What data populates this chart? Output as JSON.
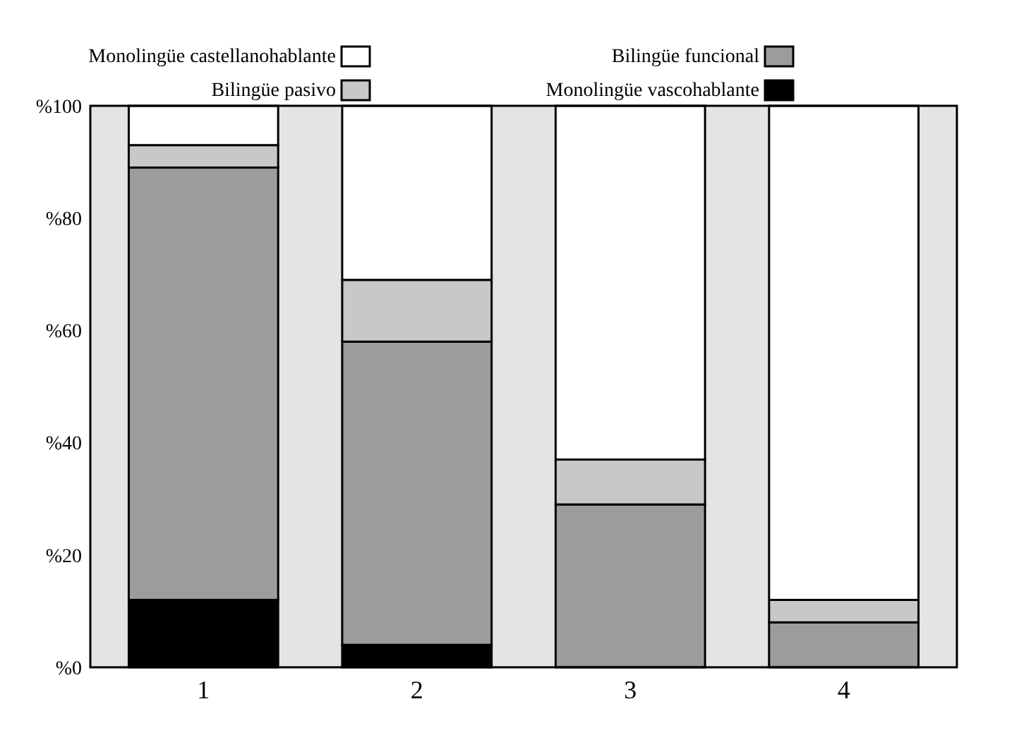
{
  "chart_data": {
    "type": "bar",
    "stacked": true,
    "categories": [
      "1",
      "2",
      "3",
      "4"
    ],
    "series": [
      {
        "name": "Monolingüe vascohablante",
        "color": "#000000",
        "values": [
          12,
          4,
          0,
          0
        ]
      },
      {
        "name": "Bilingüe funcional",
        "color": "#9c9c9c",
        "values": [
          77,
          54,
          29,
          8
        ]
      },
      {
        "name": "Bilingüe pasivo",
        "color": "#c8c8c8",
        "values": [
          4,
          11,
          8,
          4
        ]
      },
      {
        "name": "Monolingüe castellanohablante",
        "color": "#ffffff",
        "values": [
          7,
          31,
          63,
          88
        ]
      }
    ],
    "ylim": [
      0,
      100
    ],
    "yticks": [
      {
        "value": 0,
        "label": "%0"
      },
      {
        "value": 20,
        "label": "%20"
      },
      {
        "value": 40,
        "label": "%40"
      },
      {
        "value": 60,
        "label": "%60"
      },
      {
        "value": 80,
        "label": "%80"
      },
      {
        "value": 100,
        "label": "%100"
      }
    ],
    "legend": "top",
    "grid": false
  }
}
